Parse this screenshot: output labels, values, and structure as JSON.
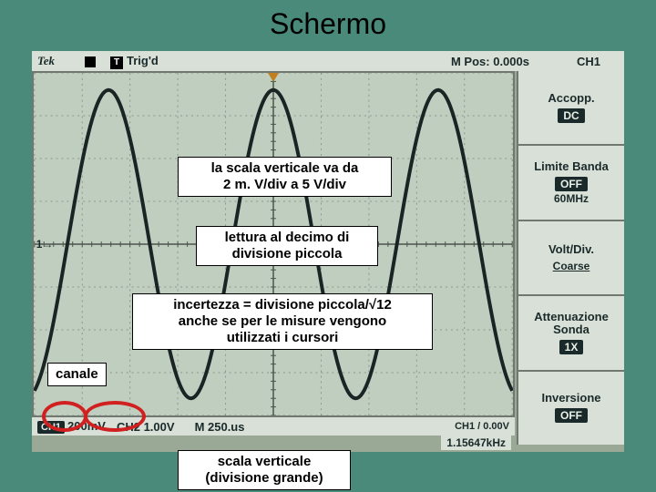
{
  "slide": {
    "title": "Schermo"
  },
  "header": {
    "brand": "Tek",
    "trigd": "Trig'd",
    "mpos": "M Pos: 0.000s",
    "channel": "CH1"
  },
  "side_panel": [
    {
      "label": "Accopp.",
      "badge": "DC"
    },
    {
      "label": "Limite Banda",
      "badge": "OFF",
      "sub": "60MHz"
    },
    {
      "label": "Volt/Div.",
      "text": "Coarse"
    },
    {
      "label": "Attenuazione Sonda",
      "badge": "1X"
    },
    {
      "label": "Inversione",
      "badge": "OFF"
    }
  ],
  "footer": {
    "ch1_label": "CH1",
    "ch1_value": "200mV",
    "ch2_label": "CH2",
    "ch2_value": "1.00V",
    "timebase": "M 250.us",
    "trig": "CH1 / 0.00V",
    "freq": "1.15647kHz"
  },
  "annotations": {
    "box1_l1": "la scala verticale va da",
    "box1_l2": "2 m. V/div a 5 V/div",
    "box2_l1": "lettura al decimo di",
    "box2_l2": "divisione piccola",
    "box3_l1": "incertezza = divisione piccola/√12",
    "box3_l2": "anche se per le misure vengono",
    "box3_l3": "utilizzati i cursori",
    "box4": "canale",
    "box5_l1": "scala verticale",
    "box5_l2": "(divisione grande)"
  },
  "waveform": {
    "grid_color": "#8a968a",
    "axis_color": "#4a544a",
    "wave_color": "#1a2424",
    "wave_width": 4,
    "grid_cols": 10,
    "grid_rows": 8,
    "amplitude_divs": 3.6,
    "cycles": 2.9,
    "phase": -0.2
  },
  "circles": {
    "color": "#d02020",
    "width": 4
  }
}
